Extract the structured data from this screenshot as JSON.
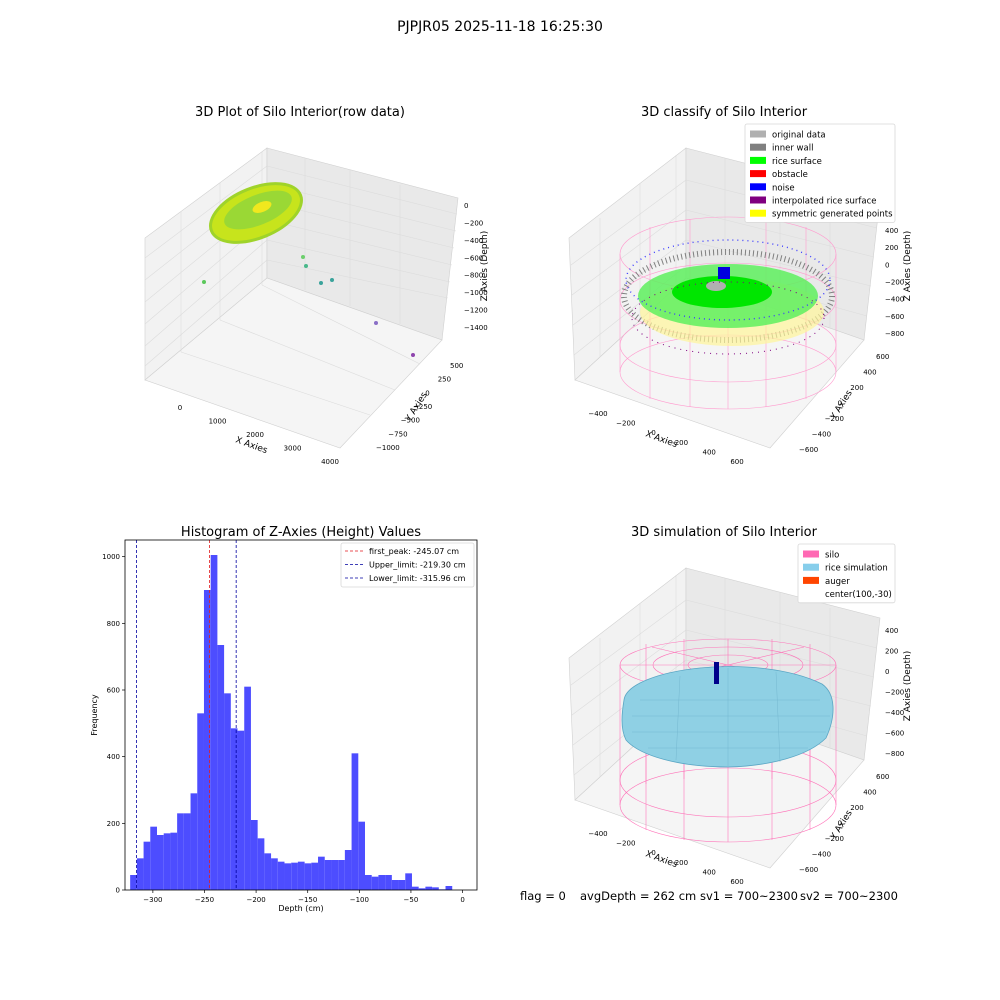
{
  "suptitle": "PJPJR05 2025-11-18 16:25:30",
  "colors": {
    "hist_bar": "#4d4dff",
    "first_peak": "#e41a1c",
    "limits": "#0000a0"
  },
  "chart_data": [
    {
      "type": "scatter3d",
      "title": "3D Plot of Silo Interior(row data)",
      "xlabel": "X Axies",
      "ylabel": "Y Axies",
      "zlabel": "Z Axies (Depth)",
      "xticks": [
        "0",
        "1000",
        "2000",
        "3000",
        "4000"
      ],
      "yticks": [
        "500",
        "250",
        "0",
        "−250",
        "−500",
        "−750",
        "−1000"
      ],
      "zticks": [
        "0",
        "−200",
        "−400",
        "−600",
        "−800",
        "−1000",
        "−1200",
        "−1400"
      ],
      "colormap": "viridis-like (yellow-green rice surface, teal/purple outliers)"
    },
    {
      "type": "scatter3d",
      "title": "3D classify of Silo Interior",
      "xlabel": "X Axies",
      "ylabel": "Y Axies",
      "zlabel": "Z Axies (Depth)",
      "xticks": [
        "−400",
        "−200",
        "0",
        "200",
        "400",
        "600"
      ],
      "yticks": [
        "600",
        "400",
        "200",
        "0",
        "−200",
        "−400",
        "−600"
      ],
      "zticks": [
        "400",
        "200",
        "0",
        "−200",
        "−400",
        "−600",
        "−800"
      ],
      "legend_position": "top-right",
      "legend": [
        {
          "label": "original data",
          "color": "#b0b0b0"
        },
        {
          "label": "inner wall",
          "color": "#808080"
        },
        {
          "label": "rice surface",
          "color": "#00ff00"
        },
        {
          "label": "obstacle",
          "color": "#ff0000"
        },
        {
          "label": "noise",
          "color": "#0000ff"
        },
        {
          "label": "interpolated rice surface",
          "color": "#800080"
        },
        {
          "label": "symmetric generated points",
          "color": "#ffff00"
        }
      ]
    },
    {
      "type": "bar",
      "title": "Histogram of Z-Axies (Height) Values",
      "xlabel": "Depth (cm)",
      "ylabel": "Frequency",
      "xlim": [
        -327,
        14
      ],
      "ylim": [
        0,
        1050
      ],
      "xticks": [
        -300,
        -250,
        -200,
        -150,
        -100,
        -50,
        0
      ],
      "xtick_labels": [
        "−300",
        "−250",
        "−200",
        "−150",
        "−100",
        "−50",
        "0"
      ],
      "yticks": [
        0,
        200,
        400,
        600,
        800,
        1000
      ],
      "yticks_labels": [
        "0",
        "200",
        "400",
        "600",
        "800",
        "1000"
      ],
      "bin_start": -322,
      "bin_width": 6.5,
      "values": [
        45,
        95,
        145,
        190,
        165,
        170,
        172,
        230,
        230,
        290,
        530,
        900,
        1005,
        735,
        590,
        485,
        478,
        610,
        210,
        155,
        110,
        95,
        85,
        80,
        82,
        85,
        80,
        82,
        100,
        90,
        90,
        90,
        120,
        410,
        205,
        45,
        40,
        45,
        45,
        30,
        30,
        50,
        10,
        5,
        10,
        8,
        2,
        12
      ],
      "vlines": [
        {
          "x": -245.07,
          "label": "first_peak: -245.07 cm",
          "color": "#e41a1c"
        },
        {
          "x": -219.3,
          "label": "Upper_limit: -219.30 cm",
          "color": "#0000a0"
        },
        {
          "x": -315.96,
          "label": "Lower_limit: -315.96 cm",
          "color": "#0000a0"
        }
      ],
      "legend_position": "top-right"
    },
    {
      "type": "surface3d",
      "title": "3D simulation of Silo Interior",
      "xlabel": "X Axies",
      "ylabel": "Y Axies",
      "zlabel": "Z Axies (Depth)",
      "xticks": [
        "−400",
        "−200",
        "0",
        "200",
        "400",
        "600"
      ],
      "yticks": [
        "600",
        "400",
        "200",
        "0",
        "−200",
        "−400",
        "−600"
      ],
      "zticks": [
        "400",
        "200",
        "0",
        "−200",
        "−400",
        "−600",
        "−800"
      ],
      "legend_position": "top-right",
      "legend": [
        {
          "label": "silo",
          "color": "#ff69b4"
        },
        {
          "label": "rice simulation",
          "color": "#87ceeb"
        },
        {
          "label": "auger",
          "color": "#ff4500"
        },
        {
          "label": "center(100,-30)",
          "color": "none"
        }
      ]
    }
  ],
  "status_line": {
    "flag": "flag = 0",
    "avg_depth": "avgDepth = 262 cm",
    "sv1": "sv1 = 700~2300",
    "sv2": "sv2 = 700~2300"
  }
}
